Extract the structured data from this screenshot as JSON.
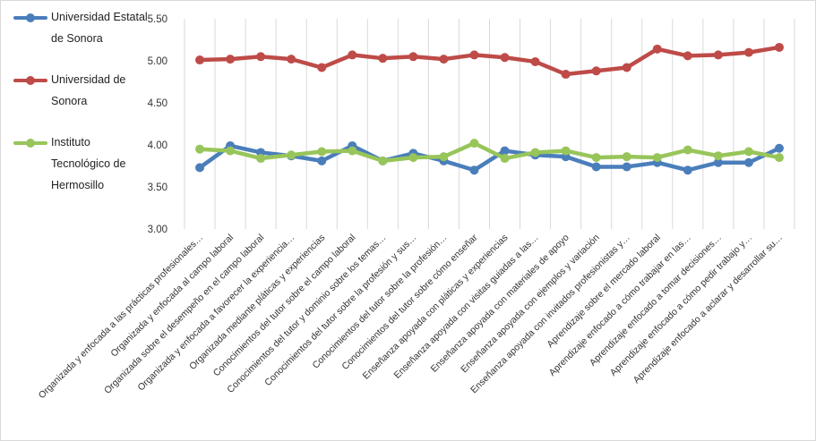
{
  "chart_data": {
    "type": "line",
    "categories": [
      "Organizada y enfocada a las prácticas profesionales…",
      "Organizada y enfocada al campo laboral",
      "Organizada sobre el desempeño en el campo laboral",
      "Organizada y enfocada a favorecer la experiencia…",
      "Organizada mediante pláticas y experiencias",
      "Conocimientos del tutor sobre el campo laboral",
      "Conocimientos del tutor y dominio sobre los temas…",
      "Conocimientos del tutor sobre la profesión y sus…",
      "Conocimientos del tutor sobre la profesión…",
      "Conocimientos del tutor sobre cómo enseñar",
      "Enseñanza apoyada con pláticas y experiencias",
      "Enseñanza apoyada con visitas guiadas a las…",
      "Enseñanza apoyada con materiales de apoyo",
      "Enseñanza apoyada con ejemplos y variación",
      "Enseñanza apoyada con invitados profesionistas y…",
      "Aprendizaje sobre el mercado laboral",
      "Aprendizaje enfocado a cómo trabajar en las…",
      "Aprendizaje enfocado a tomar decisiones…",
      "Aprendizaje enfocado a cómo pedir trabajo y…",
      "Aprendizaje enfocado a aclarar y desarrollar su…"
    ],
    "series": [
      {
        "name": "Universidad Estatal de Sonora",
        "color": "#4a7ebb",
        "values": [
          3.73,
          3.99,
          3.91,
          3.87,
          3.81,
          3.99,
          3.81,
          3.9,
          3.81,
          3.7,
          3.93,
          3.88,
          3.86,
          3.74,
          3.74,
          3.79,
          3.7,
          3.79,
          3.79,
          3.96
        ]
      },
      {
        "name": "Universidad de Sonora",
        "color": "#be4b48",
        "values": [
          5.01,
          5.02,
          5.05,
          5.02,
          4.92,
          5.07,
          5.03,
          5.05,
          5.02,
          5.07,
          5.04,
          4.99,
          4.84,
          4.88,
          4.92,
          5.14,
          5.06,
          5.07,
          5.1,
          5.16
        ]
      },
      {
        "name": "Instituto Tecnológico de Hermosillo",
        "color": "#98c55a",
        "values": [
          3.95,
          3.93,
          3.84,
          3.88,
          3.92,
          3.93,
          3.81,
          3.85,
          3.86,
          4.02,
          3.84,
          3.91,
          3.93,
          3.85,
          3.86,
          3.85,
          3.94,
          3.87,
          3.92,
          3.85
        ]
      }
    ],
    "ylim": [
      3.0,
      5.5
    ],
    "yticks": [
      "3.00",
      "3.50",
      "4.00",
      "4.50",
      "5.00",
      "5.50"
    ],
    "grid": "vertical",
    "legend_position": "left"
  },
  "legend": {
    "items": [
      {
        "lines": [
          "Universidad Estatal",
          "de Sonora"
        ],
        "color": "#4a7ebb"
      },
      {
        "lines": [
          "Universidad de",
          "Sonora"
        ],
        "color": "#be4b48"
      },
      {
        "lines": [
          "Instituto",
          "Tecnológico de",
          "Hermosillo"
        ],
        "color": "#98c55a"
      }
    ]
  }
}
